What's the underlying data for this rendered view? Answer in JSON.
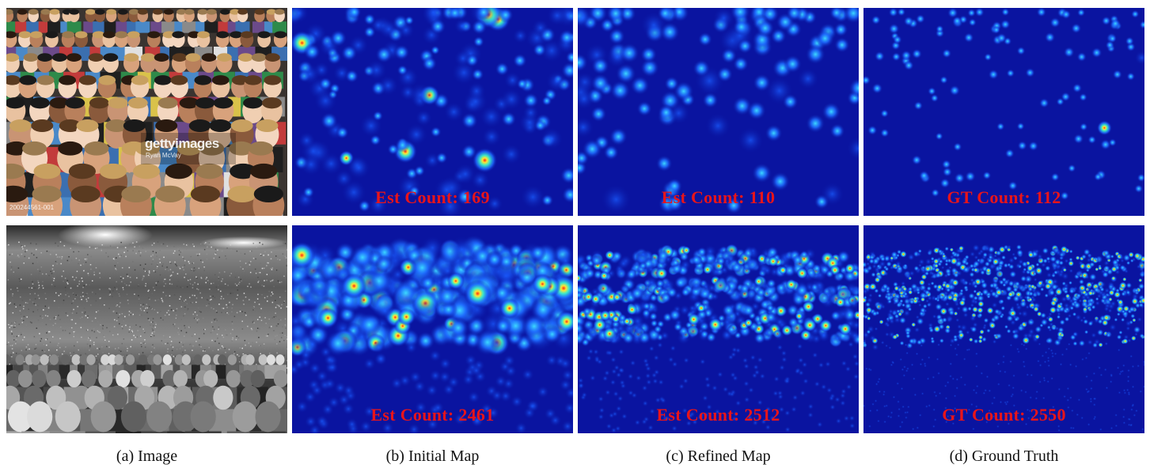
{
  "figure": {
    "columns": [
      {
        "caption": "(a) Image"
      },
      {
        "caption": "(b) Initial Map"
      },
      {
        "caption": "(c) Refined Map"
      },
      {
        "caption": "(d) Ground Truth"
      }
    ],
    "rows": [
      {
        "photo": {
          "description": "crowd photo",
          "watermark": "gettyimages",
          "watermark_credit": "Ryan McVay",
          "watermark_id": "200244561-001"
        },
        "initial_label": "Est Count: 169",
        "refined_label": "Est Count: 110",
        "gt_label": "GT Count: 112"
      },
      {
        "photo": {
          "description": "concert crowd grayscale"
        },
        "initial_label": "Est Count: 2461",
        "refined_label": "Est Count: 2512",
        "gt_label": "GT Count: 2550"
      }
    ]
  },
  "colors": {
    "map_background": "#0a14a0",
    "count_text": "#e8141a"
  }
}
